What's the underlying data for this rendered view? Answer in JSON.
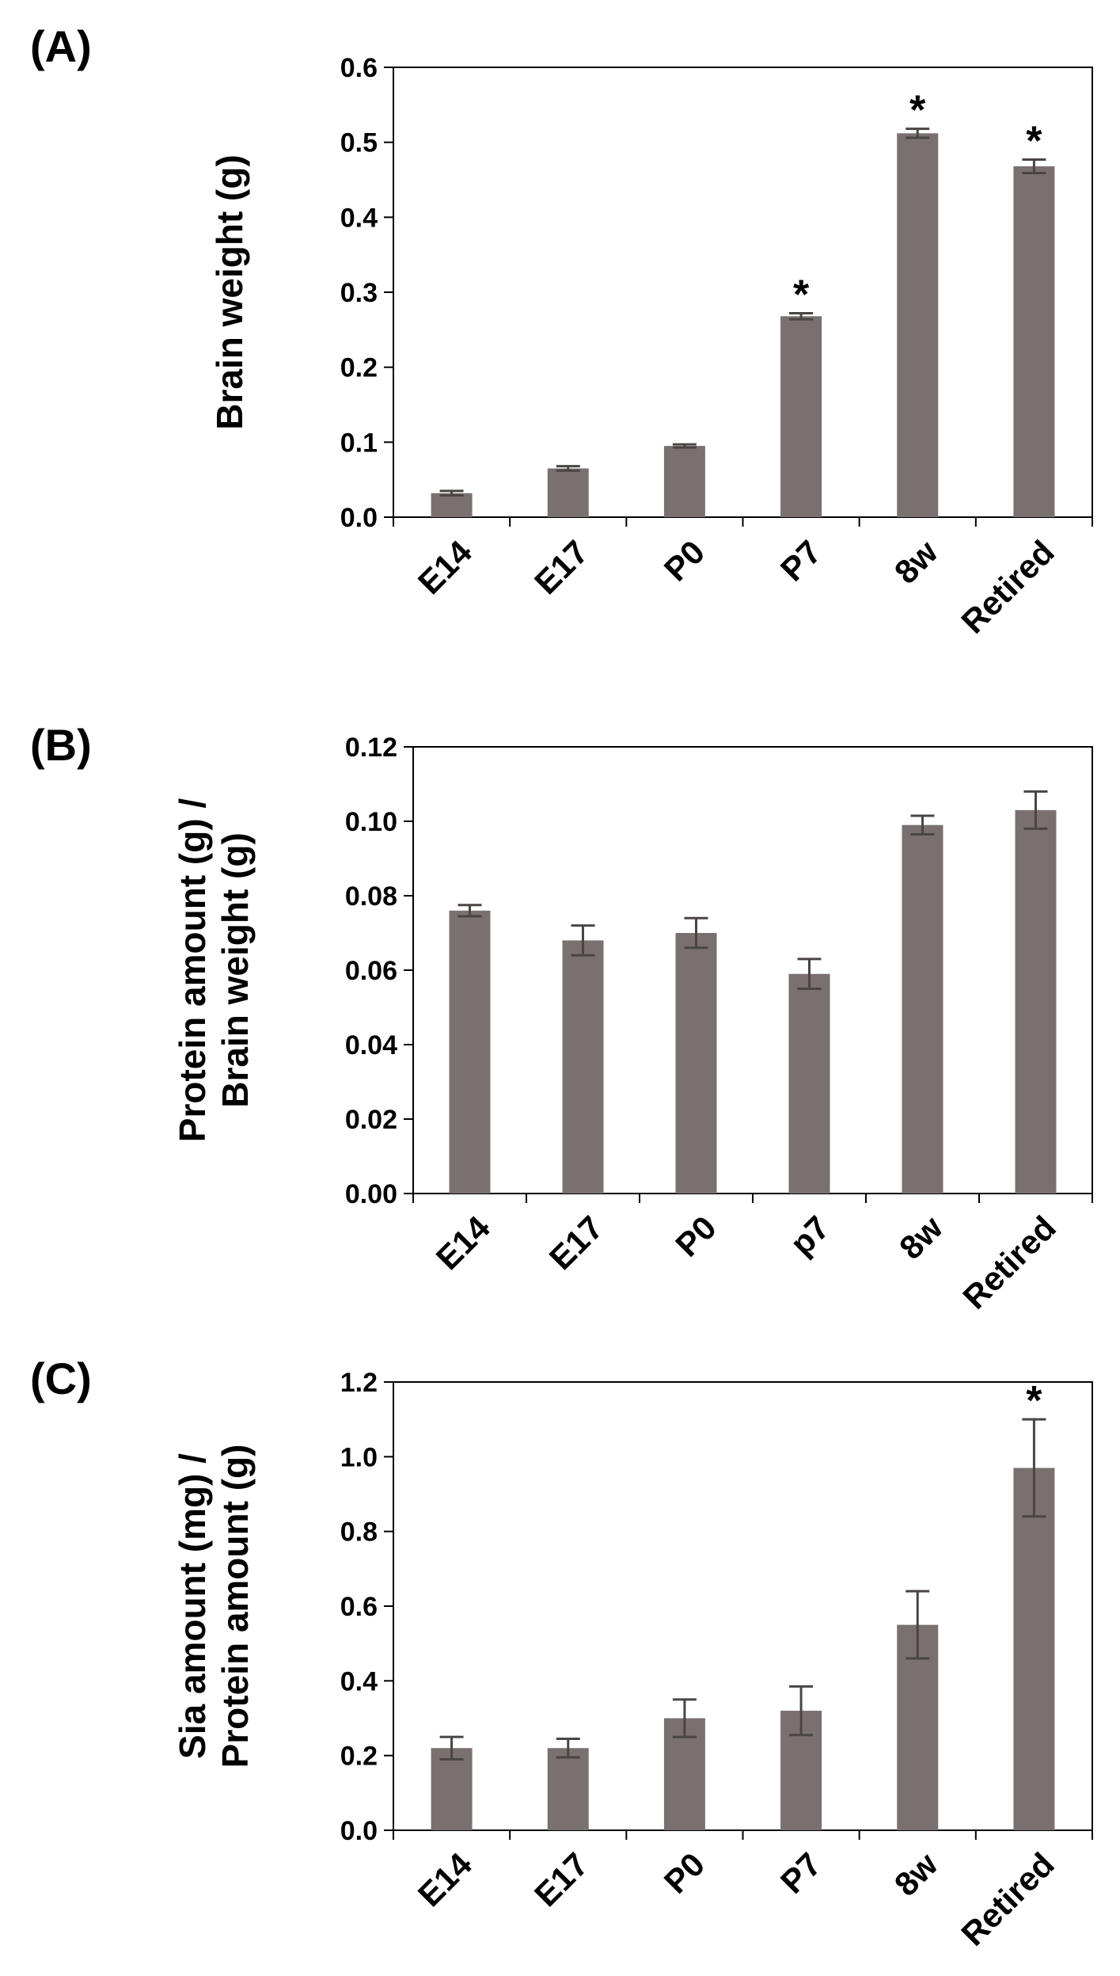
{
  "bar_color": "#7a7070",
  "error_color": "#4a4545",
  "axis_color": "#000000",
  "chart_data": [
    {
      "type": "bar",
      "panel": "(A)",
      "ylabel_lines": [
        "Brain weight (g)"
      ],
      "categories": [
        "E14",
        "E17",
        "P0",
        "P7",
        "8w",
        "Retired"
      ],
      "values": [
        0.032,
        0.065,
        0.095,
        0.268,
        0.512,
        0.468
      ],
      "errors": [
        0.003,
        0.003,
        0.002,
        0.004,
        0.006,
        0.009
      ],
      "significant": [
        false,
        false,
        false,
        true,
        true,
        true
      ],
      "ylim": [
        0,
        0.6
      ],
      "yticks": [
        "0.0",
        "0.1",
        "0.2",
        "0.3",
        "0.4",
        "0.5",
        "0.6"
      ]
    },
    {
      "type": "bar",
      "panel": "(B)",
      "ylabel_lines": [
        "Protein amount (g) /",
        "Brain weight (g)"
      ],
      "categories": [
        "E14",
        "E17",
        "P0",
        "p7",
        "8w",
        "Retired"
      ],
      "values": [
        0.076,
        0.068,
        0.07,
        0.059,
        0.099,
        0.103
      ],
      "errors": [
        0.0015,
        0.004,
        0.004,
        0.004,
        0.0025,
        0.005
      ],
      "significant": [
        false,
        false,
        false,
        false,
        false,
        false
      ],
      "ylim": [
        0,
        0.12
      ],
      "yticks": [
        "0.00",
        "0.02",
        "0.04",
        "0.06",
        "0.08",
        "0.10",
        "0.12"
      ]
    },
    {
      "type": "bar",
      "panel": "(C)",
      "ylabel_lines": [
        "Sia amount (mg) /",
        "Protein amount (g)"
      ],
      "categories": [
        "E14",
        "E17",
        "P0",
        "P7",
        "8w",
        "Retired"
      ],
      "values": [
        0.22,
        0.22,
        0.3,
        0.32,
        0.55,
        0.97
      ],
      "errors": [
        0.03,
        0.025,
        0.05,
        0.065,
        0.09,
        0.13
      ],
      "significant": [
        false,
        false,
        false,
        false,
        false,
        true
      ],
      "ylim": [
        0,
        1.2
      ],
      "yticks": [
        "0.0",
        "0.2",
        "0.4",
        "0.6",
        "0.8",
        "1.0",
        "1.2"
      ]
    }
  ],
  "significance_marker": "*"
}
